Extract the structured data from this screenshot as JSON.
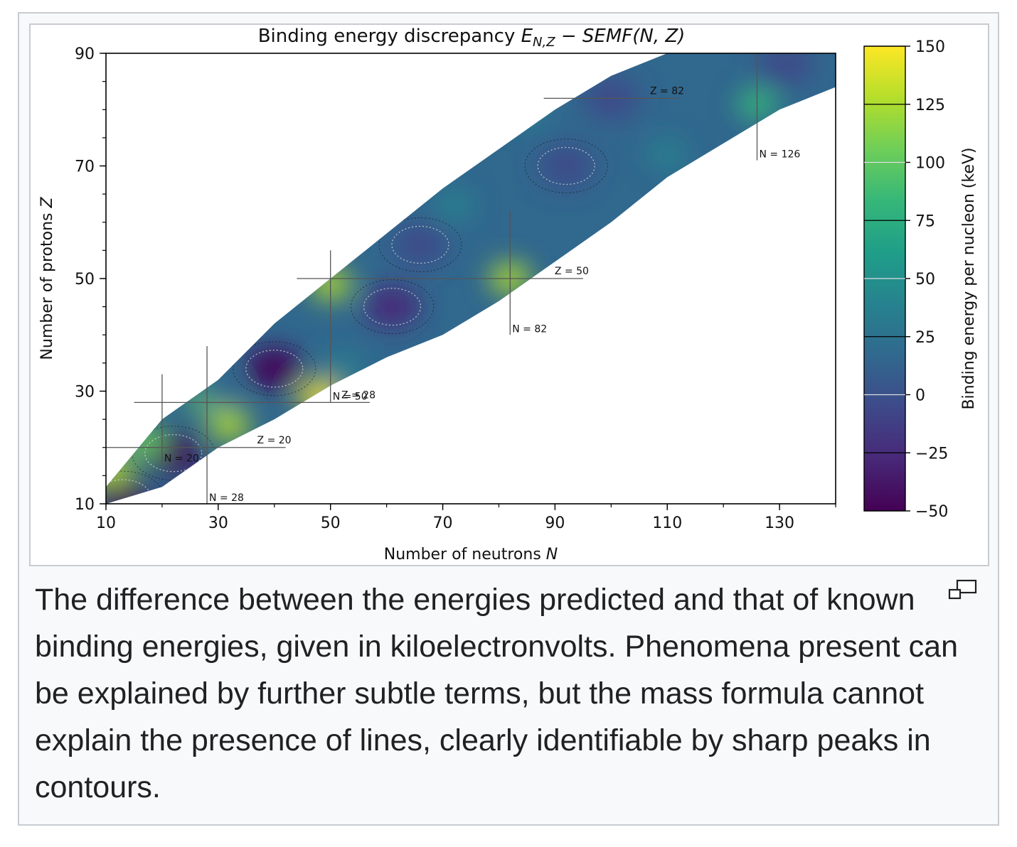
{
  "figure": {
    "caption": "The difference between the energies predicted and that of known binding energies, given in kiloelectronvolts. Phenomena present can be explained by further subtle terms, but the mass formula cannot explain the presence of lines, clearly identifiable by sharp peaks in contours.",
    "magnify_icon": "magnify-clip-icon"
  },
  "chart_data": {
    "type": "heatmap",
    "title_main": "Binding energy discrepancy ",
    "title_formula": "E",
    "title_sub": "N,Z",
    "title_tail": " − SEMF(N, Z)",
    "xlabel": "Number of neutrons ",
    "xlabel_var": "N",
    "ylabel": "Number of protons ",
    "ylabel_var": "Z",
    "xlim": [
      10,
      140
    ],
    "ylim": [
      10,
      90
    ],
    "x_ticks": [
      10,
      30,
      50,
      70,
      90,
      110,
      130
    ],
    "y_ticks": [
      10,
      30,
      50,
      70,
      90
    ],
    "colorbar": {
      "label": "Binding energy per nucleon (keV)",
      "range": [
        -50,
        150
      ],
      "ticks": [
        150,
        125,
        100,
        75,
        50,
        25,
        0,
        -25,
        -50
      ],
      "tick_labels": [
        "150",
        "125",
        "100",
        "75",
        "50",
        "25",
        "0",
        "−25",
        "−50"
      ],
      "colormap": [
        "#440154",
        "#482878",
        "#3e4989",
        "#31688e",
        "#26828e",
        "#1f9e89",
        "#35b779",
        "#6ece58",
        "#b5de2b",
        "#fde725"
      ]
    },
    "magic_lines": [
      {
        "label": "N = 20",
        "axis": "N",
        "value": 20,
        "range": [
          17,
          33
        ]
      },
      {
        "label": "N = 28",
        "axis": "N",
        "value": 28,
        "range": [
          10,
          38
        ]
      },
      {
        "label": "N = 50",
        "axis": "N",
        "value": 50,
        "range": [
          28,
          55
        ]
      },
      {
        "label": "N = 82",
        "axis": "N",
        "value": 82,
        "range": [
          40,
          62
        ]
      },
      {
        "label": "N = 126",
        "axis": "N",
        "value": 126,
        "range": [
          71,
          90
        ]
      },
      {
        "label": "Z = 20",
        "axis": "Z",
        "value": 20,
        "range": [
          10,
          42
        ]
      },
      {
        "label": "Z = 28",
        "axis": "Z",
        "value": 28,
        "range": [
          15,
          57
        ]
      },
      {
        "label": "Z = 50",
        "axis": "Z",
        "value": 50,
        "range": [
          44,
          95
        ]
      },
      {
        "label": "Z = 82",
        "axis": "Z",
        "value": 82,
        "range": [
          88,
          112
        ]
      }
    ],
    "band": {
      "upper": [
        [
          10,
          13
        ],
        [
          20,
          25
        ],
        [
          30,
          32
        ],
        [
          40,
          42
        ],
        [
          50,
          50
        ],
        [
          60,
          58
        ],
        [
          70,
          66
        ],
        [
          80,
          73
        ],
        [
          90,
          80
        ],
        [
          100,
          86
        ],
        [
          110,
          90
        ],
        [
          140,
          90
        ]
      ],
      "lower": [
        [
          10,
          10
        ],
        [
          20,
          13
        ],
        [
          30,
          20
        ],
        [
          40,
          25
        ],
        [
          50,
          31
        ],
        [
          60,
          36
        ],
        [
          70,
          40
        ],
        [
          80,
          46
        ],
        [
          90,
          53
        ],
        [
          100,
          60
        ],
        [
          110,
          68
        ],
        [
          120,
          74
        ],
        [
          130,
          80
        ],
        [
          140,
          84
        ]
      ]
    },
    "features": [
      {
        "N": 22,
        "Z": 19,
        "value": -45
      },
      {
        "N": 13,
        "Z": 11,
        "value": -40
      },
      {
        "N": 40,
        "Z": 34,
        "value": -40
      },
      {
        "N": 61,
        "Z": 45,
        "value": -20
      },
      {
        "N": 66,
        "Z": 56,
        "value": -15
      },
      {
        "N": 92,
        "Z": 70,
        "value": -15
      },
      {
        "N": 100,
        "Z": 82,
        "value": -10
      },
      {
        "N": 131,
        "Z": 88,
        "value": -10
      },
      {
        "N": 126,
        "Z": 81,
        "value": 80
      },
      {
        "N": 82,
        "Z": 50,
        "value": 135
      },
      {
        "N": 50,
        "Z": 49,
        "value": 125
      },
      {
        "N": 28,
        "Z": 29,
        "value": 110
      },
      {
        "N": 48,
        "Z": 29,
        "value": 140
      },
      {
        "N": 32,
        "Z": 24,
        "value": 120
      },
      {
        "N": 17,
        "Z": 21,
        "value": 110
      },
      {
        "N": 11,
        "Z": 16,
        "value": 120
      },
      {
        "N": 72,
        "Z": 63,
        "value": 40
      },
      {
        "N": 52,
        "Z": 34,
        "value": 40
      },
      {
        "N": 30,
        "Z": 30,
        "value": 20
      },
      {
        "N": 85,
        "Z": 80,
        "value": 40
      },
      {
        "N": 110,
        "Z": 72,
        "value": 30
      }
    ]
  }
}
